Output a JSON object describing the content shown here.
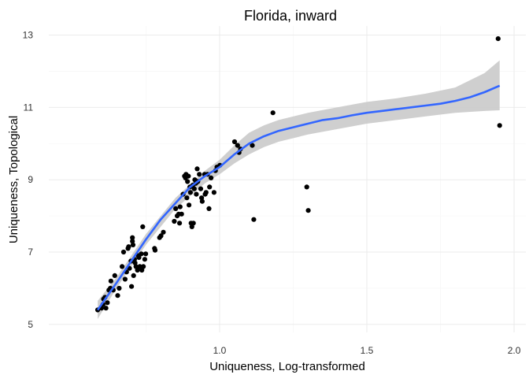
{
  "chart_data": {
    "type": "scatter",
    "title": "Florida, inward",
    "xlabel": "Uniqueness, Log-transformed",
    "ylabel": "Uniqueness, Topological",
    "xlim": [
      0.42,
      2.04
    ],
    "ylim": [
      4.78,
      13.25
    ],
    "x_ticks": [
      1.0,
      1.5,
      2.0
    ],
    "x_tick_labels": [
      "1.0",
      "1.5",
      "2.0"
    ],
    "y_ticks": [
      5,
      7,
      9,
      11,
      13
    ],
    "y_tick_labels": [
      "5",
      "7",
      "9",
      "11",
      "13"
    ],
    "x_minor_gridlines": [
      0.75,
      1.25,
      1.75
    ],
    "y_minor_gridlines": [
      6,
      8,
      10,
      12
    ],
    "grid": true,
    "points": [
      {
        "x": 0.586,
        "y": 5.4
      },
      {
        "x": 0.599,
        "y": 5.45
      },
      {
        "x": 0.604,
        "y": 5.55
      },
      {
        "x": 0.606,
        "y": 5.7
      },
      {
        "x": 0.611,
        "y": 5.75
      },
      {
        "x": 0.614,
        "y": 5.45
      },
      {
        "x": 0.619,
        "y": 5.6
      },
      {
        "x": 0.624,
        "y": 5.95
      },
      {
        "x": 0.629,
        "y": 6.0
      },
      {
        "x": 0.631,
        "y": 6.2
      },
      {
        "x": 0.639,
        "y": 5.95
      },
      {
        "x": 0.644,
        "y": 6.35
      },
      {
        "x": 0.654,
        "y": 5.8
      },
      {
        "x": 0.659,
        "y": 6.0
      },
      {
        "x": 0.669,
        "y": 6.6
      },
      {
        "x": 0.674,
        "y": 7.0
      },
      {
        "x": 0.679,
        "y": 6.25
      },
      {
        "x": 0.684,
        "y": 6.45
      },
      {
        "x": 0.689,
        "y": 7.1
      },
      {
        "x": 0.691,
        "y": 7.15
      },
      {
        "x": 0.694,
        "y": 6.55
      },
      {
        "x": 0.699,
        "y": 6.75
      },
      {
        "x": 0.701,
        "y": 6.05
      },
      {
        "x": 0.704,
        "y": 7.3
      },
      {
        "x": 0.704,
        "y": 7.4
      },
      {
        "x": 0.706,
        "y": 7.2
      },
      {
        "x": 0.708,
        "y": 6.35
      },
      {
        "x": 0.711,
        "y": 6.8
      },
      {
        "x": 0.713,
        "y": 6.7
      },
      {
        "x": 0.716,
        "y": 6.6
      },
      {
        "x": 0.721,
        "y": 6.5
      },
      {
        "x": 0.724,
        "y": 6.9
      },
      {
        "x": 0.726,
        "y": 6.85
      },
      {
        "x": 0.729,
        "y": 6.6
      },
      {
        "x": 0.734,
        "y": 6.95
      },
      {
        "x": 0.736,
        "y": 6.5
      },
      {
        "x": 0.739,
        "y": 7.7
      },
      {
        "x": 0.741,
        "y": 6.6
      },
      {
        "x": 0.746,
        "y": 6.8
      },
      {
        "x": 0.749,
        "y": 6.95
      },
      {
        "x": 0.779,
        "y": 7.1
      },
      {
        "x": 0.781,
        "y": 7.05
      },
      {
        "x": 0.796,
        "y": 7.4
      },
      {
        "x": 0.801,
        "y": 7.45
      },
      {
        "x": 0.809,
        "y": 7.55
      },
      {
        "x": 0.846,
        "y": 7.85
      },
      {
        "x": 0.851,
        "y": 8.2
      },
      {
        "x": 0.856,
        "y": 8.0
      },
      {
        "x": 0.861,
        "y": 8.05
      },
      {
        "x": 0.864,
        "y": 7.8
      },
      {
        "x": 0.866,
        "y": 8.25
      },
      {
        "x": 0.871,
        "y": 8.05
      },
      {
        "x": 0.876,
        "y": 8.6
      },
      {
        "x": 0.881,
        "y": 9.1
      },
      {
        "x": 0.884,
        "y": 9.05
      },
      {
        "x": 0.886,
        "y": 9.15
      },
      {
        "x": 0.889,
        "y": 8.5
      },
      {
        "x": 0.891,
        "y": 8.95
      },
      {
        "x": 0.894,
        "y": 9.1
      },
      {
        "x": 0.896,
        "y": 8.3
      },
      {
        "x": 0.899,
        "y": 8.8
      },
      {
        "x": 0.901,
        "y": 8.65
      },
      {
        "x": 0.903,
        "y": 7.8
      },
      {
        "x": 0.906,
        "y": 7.7
      },
      {
        "x": 0.909,
        "y": 8.85
      },
      {
        "x": 0.911,
        "y": 7.8
      },
      {
        "x": 0.914,
        "y": 8.75
      },
      {
        "x": 0.916,
        "y": 9.0
      },
      {
        "x": 0.919,
        "y": 8.9
      },
      {
        "x": 0.921,
        "y": 8.6
      },
      {
        "x": 0.924,
        "y": 9.3
      },
      {
        "x": 0.926,
        "y": 8.95
      },
      {
        "x": 0.931,
        "y": 9.15
      },
      {
        "x": 0.936,
        "y": 8.75
      },
      {
        "x": 0.939,
        "y": 8.5
      },
      {
        "x": 0.941,
        "y": 8.4
      },
      {
        "x": 0.949,
        "y": 9.15
      },
      {
        "x": 0.951,
        "y": 8.6
      },
      {
        "x": 0.954,
        "y": 8.65
      },
      {
        "x": 0.959,
        "y": 9.15
      },
      {
        "x": 0.964,
        "y": 8.2
      },
      {
        "x": 0.966,
        "y": 8.8
      },
      {
        "x": 0.971,
        "y": 9.05
      },
      {
        "x": 0.981,
        "y": 8.65
      },
      {
        "x": 0.986,
        "y": 9.25
      },
      {
        "x": 0.991,
        "y": 9.35
      },
      {
        "x": 1.001,
        "y": 9.4
      },
      {
        "x": 1.051,
        "y": 10.05
      },
      {
        "x": 1.061,
        "y": 9.95
      },
      {
        "x": 1.066,
        "y": 9.75
      },
      {
        "x": 1.071,
        "y": 9.85
      },
      {
        "x": 1.111,
        "y": 9.95
      },
      {
        "x": 1.116,
        "y": 7.9
      },
      {
        "x": 1.181,
        "y": 10.85
      },
      {
        "x": 1.296,
        "y": 8.8
      },
      {
        "x": 1.301,
        "y": 8.15
      },
      {
        "x": 1.946,
        "y": 12.9
      },
      {
        "x": 1.951,
        "y": 10.5
      }
    ],
    "smooth_fit": [
      {
        "x": 0.586,
        "y": 5.4
      },
      {
        "x": 0.62,
        "y": 5.8
      },
      {
        "x": 0.65,
        "y": 6.15
      },
      {
        "x": 0.7,
        "y": 6.75
      },
      {
        "x": 0.75,
        "y": 7.35
      },
      {
        "x": 0.8,
        "y": 7.9
      },
      {
        "x": 0.85,
        "y": 8.35
      },
      {
        "x": 0.9,
        "y": 8.8
      },
      {
        "x": 0.95,
        "y": 9.1
      },
      {
        "x": 1.0,
        "y": 9.35
      },
      {
        "x": 1.05,
        "y": 9.7
      },
      {
        "x": 1.1,
        "y": 10.0
      },
      {
        "x": 1.15,
        "y": 10.2
      },
      {
        "x": 1.2,
        "y": 10.35
      },
      {
        "x": 1.25,
        "y": 10.45
      },
      {
        "x": 1.3,
        "y": 10.55
      },
      {
        "x": 1.35,
        "y": 10.65
      },
      {
        "x": 1.4,
        "y": 10.7
      },
      {
        "x": 1.45,
        "y": 10.78
      },
      {
        "x": 1.5,
        "y": 10.85
      },
      {
        "x": 1.55,
        "y": 10.9
      },
      {
        "x": 1.6,
        "y": 10.95
      },
      {
        "x": 1.65,
        "y": 11.0
      },
      {
        "x": 1.7,
        "y": 11.05
      },
      {
        "x": 1.75,
        "y": 11.1
      },
      {
        "x": 1.8,
        "y": 11.18
      },
      {
        "x": 1.85,
        "y": 11.28
      },
      {
        "x": 1.9,
        "y": 11.42
      },
      {
        "x": 1.951,
        "y": 11.6
      }
    ],
    "confidence_band": [
      {
        "x": 0.586,
        "lo": 5.15,
        "hi": 5.65
      },
      {
        "x": 0.65,
        "lo": 6.0,
        "hi": 6.3
      },
      {
        "x": 0.75,
        "lo": 7.2,
        "hi": 7.5
      },
      {
        "x": 0.85,
        "lo": 8.2,
        "hi": 8.5
      },
      {
        "x": 0.95,
        "lo": 8.9,
        "hi": 9.25
      },
      {
        "x": 1.0,
        "lo": 9.15,
        "hi": 9.55
      },
      {
        "x": 1.05,
        "lo": 9.45,
        "hi": 9.95
      },
      {
        "x": 1.1,
        "lo": 9.7,
        "hi": 10.3
      },
      {
        "x": 1.15,
        "lo": 9.9,
        "hi": 10.5
      },
      {
        "x": 1.2,
        "lo": 10.05,
        "hi": 10.65
      },
      {
        "x": 1.3,
        "lo": 10.25,
        "hi": 10.85
      },
      {
        "x": 1.4,
        "lo": 10.4,
        "hi": 11.0
      },
      {
        "x": 1.5,
        "lo": 10.55,
        "hi": 11.15
      },
      {
        "x": 1.6,
        "lo": 10.65,
        "hi": 11.25
      },
      {
        "x": 1.7,
        "lo": 10.75,
        "hi": 11.38
      },
      {
        "x": 1.8,
        "lo": 10.85,
        "hi": 11.55
      },
      {
        "x": 1.9,
        "lo": 10.9,
        "hi": 11.95
      },
      {
        "x": 1.951,
        "lo": 10.92,
        "hi": 12.3
      }
    ],
    "colors": {
      "points": "#000000",
      "fit_line": "#3366FF",
      "band": "#CCCCCC",
      "grid_major": "#EBEBEB",
      "grid_minor": "#F5F5F5",
      "text": "#000000",
      "tick_text": "#333333"
    }
  }
}
